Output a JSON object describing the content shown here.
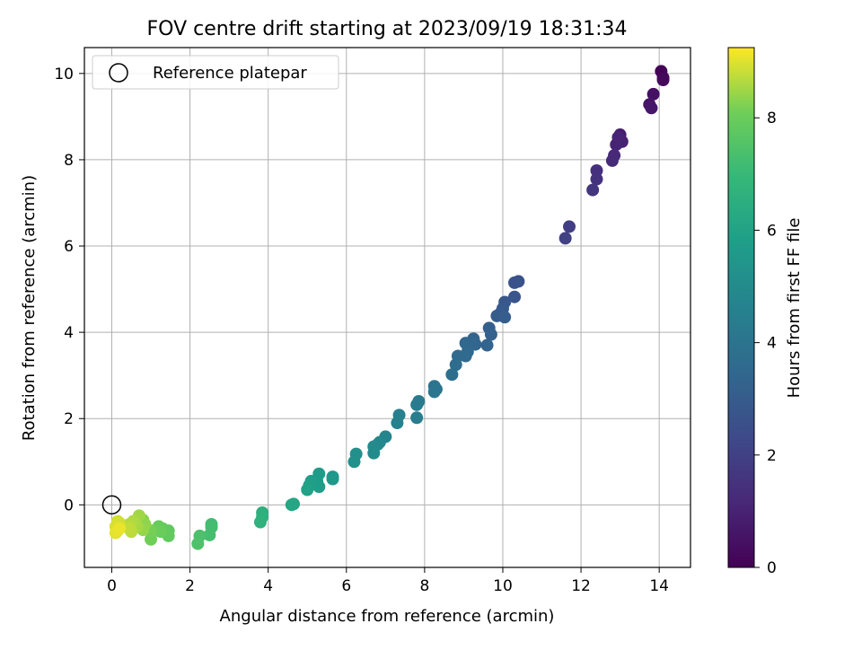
{
  "chart_data": {
    "type": "scatter",
    "title": "FOV centre drift starting at 2023/09/19 18:31:34",
    "xlabel": "Angular distance from reference (arcmin)",
    "ylabel": "Rotation from reference (arcmin)",
    "xlim": [
      -0.7,
      14.8
    ],
    "ylim": [
      -1.45,
      10.6
    ],
    "xticks": [
      0,
      2,
      4,
      6,
      8,
      10,
      12,
      14
    ],
    "yticks": [
      0,
      2,
      4,
      6,
      8,
      10
    ],
    "grid": true,
    "legend": {
      "position": "top-left",
      "entries": [
        "Reference platepar"
      ]
    },
    "reference_point": {
      "x": 0,
      "y": 0,
      "label": "Reference platepar"
    },
    "colorbar": {
      "label": "Hours from first FF file",
      "range": [
        0,
        9.25
      ],
      "ticks": [
        0,
        2,
        4,
        6,
        8
      ],
      "colormap": "viridis"
    },
    "points": [
      {
        "x": 14.05,
        "y": 10.05,
        "h": 0.05
      },
      {
        "x": 14.1,
        "y": 9.9,
        "h": 0.15
      },
      {
        "x": 14.1,
        "y": 9.85,
        "h": 0.25
      },
      {
        "x": 13.85,
        "y": 9.52,
        "h": 0.45
      },
      {
        "x": 13.75,
        "y": 9.28,
        "h": 0.55
      },
      {
        "x": 13.8,
        "y": 9.2,
        "h": 0.65
      },
      {
        "x": 13.0,
        "y": 8.58,
        "h": 0.85
      },
      {
        "x": 13.05,
        "y": 8.42,
        "h": 0.95
      },
      {
        "x": 12.9,
        "y": 8.35,
        "h": 1.0
      },
      {
        "x": 12.95,
        "y": 8.52,
        "h": 1.05
      },
      {
        "x": 12.85,
        "y": 8.1,
        "h": 1.15
      },
      {
        "x": 12.8,
        "y": 7.98,
        "h": 1.25
      },
      {
        "x": 12.4,
        "y": 7.75,
        "h": 1.4
      },
      {
        "x": 12.4,
        "y": 7.55,
        "h": 1.5
      },
      {
        "x": 12.3,
        "y": 7.3,
        "h": 1.6
      },
      {
        "x": 11.7,
        "y": 6.45,
        "h": 1.9
      },
      {
        "x": 11.6,
        "y": 6.18,
        "h": 2.0
      },
      {
        "x": 10.4,
        "y": 5.18,
        "h": 2.6
      },
      {
        "x": 10.3,
        "y": 5.15,
        "h": 2.65
      },
      {
        "x": 10.3,
        "y": 4.82,
        "h": 2.75
      },
      {
        "x": 10.05,
        "y": 4.7,
        "h": 2.85
      },
      {
        "x": 10.0,
        "y": 4.55,
        "h": 2.9
      },
      {
        "x": 9.95,
        "y": 4.45,
        "h": 2.95
      },
      {
        "x": 9.85,
        "y": 4.38,
        "h": 3.0
      },
      {
        "x": 10.05,
        "y": 4.35,
        "h": 3.05
      },
      {
        "x": 9.65,
        "y": 4.1,
        "h": 3.15
      },
      {
        "x": 9.7,
        "y": 3.95,
        "h": 3.2
      },
      {
        "x": 9.6,
        "y": 3.7,
        "h": 3.3
      },
      {
        "x": 9.25,
        "y": 3.85,
        "h": 3.35
      },
      {
        "x": 9.3,
        "y": 3.72,
        "h": 3.4
      },
      {
        "x": 9.05,
        "y": 3.75,
        "h": 3.45
      },
      {
        "x": 9.1,
        "y": 3.55,
        "h": 3.5
      },
      {
        "x": 9.05,
        "y": 3.45,
        "h": 3.55
      },
      {
        "x": 8.85,
        "y": 3.45,
        "h": 3.6
      },
      {
        "x": 8.8,
        "y": 3.25,
        "h": 3.7
      },
      {
        "x": 8.7,
        "y": 3.02,
        "h": 3.8
      },
      {
        "x": 8.25,
        "y": 2.75,
        "h": 4.0
      },
      {
        "x": 8.3,
        "y": 2.68,
        "h": 4.05
      },
      {
        "x": 8.25,
        "y": 2.62,
        "h": 4.1
      },
      {
        "x": 7.85,
        "y": 2.4,
        "h": 4.25
      },
      {
        "x": 7.8,
        "y": 2.32,
        "h": 4.3
      },
      {
        "x": 7.8,
        "y": 2.02,
        "h": 4.4
      },
      {
        "x": 7.35,
        "y": 2.08,
        "h": 4.55
      },
      {
        "x": 7.3,
        "y": 1.9,
        "h": 4.6
      },
      {
        "x": 7.0,
        "y": 1.58,
        "h": 4.75
      },
      {
        "x": 6.85,
        "y": 1.45,
        "h": 4.85
      },
      {
        "x": 6.8,
        "y": 1.4,
        "h": 4.9
      },
      {
        "x": 6.7,
        "y": 1.35,
        "h": 4.95
      },
      {
        "x": 6.7,
        "y": 1.2,
        "h": 5.0
      },
      {
        "x": 6.25,
        "y": 1.18,
        "h": 5.2
      },
      {
        "x": 6.2,
        "y": 1.0,
        "h": 5.25
      },
      {
        "x": 5.65,
        "y": 0.65,
        "h": 5.5
      },
      {
        "x": 5.65,
        "y": 0.6,
        "h": 5.55
      },
      {
        "x": 5.3,
        "y": 0.72,
        "h": 5.65
      },
      {
        "x": 5.25,
        "y": 0.55,
        "h": 5.7
      },
      {
        "x": 5.3,
        "y": 0.42,
        "h": 5.75
      },
      {
        "x": 5.1,
        "y": 0.55,
        "h": 5.8
      },
      {
        "x": 5.05,
        "y": 0.45,
        "h": 5.85
      },
      {
        "x": 5.0,
        "y": 0.35,
        "h": 5.9
      },
      {
        "x": 4.65,
        "y": 0.02,
        "h": 6.1
      },
      {
        "x": 4.6,
        "y": 0.0,
        "h": 6.15
      },
      {
        "x": 3.85,
        "y": -0.18,
        "h": 6.55
      },
      {
        "x": 3.85,
        "y": -0.28,
        "h": 6.6
      },
      {
        "x": 3.8,
        "y": -0.4,
        "h": 6.65
      },
      {
        "x": 2.55,
        "y": -0.45,
        "h": 7.2
      },
      {
        "x": 2.55,
        "y": -0.52,
        "h": 7.25
      },
      {
        "x": 2.5,
        "y": -0.7,
        "h": 7.3
      },
      {
        "x": 2.25,
        "y": -0.72,
        "h": 7.4
      },
      {
        "x": 2.2,
        "y": -0.9,
        "h": 7.45
      },
      {
        "x": 1.45,
        "y": -0.6,
        "h": 7.8
      },
      {
        "x": 1.45,
        "y": -0.72,
        "h": 7.85
      },
      {
        "x": 1.3,
        "y": -0.55,
        "h": 7.9
      },
      {
        "x": 1.2,
        "y": -0.5,
        "h": 7.95
      },
      {
        "x": 1.25,
        "y": -0.62,
        "h": 8.0
      },
      {
        "x": 1.0,
        "y": -0.8,
        "h": 8.1
      },
      {
        "x": 1.0,
        "y": -0.6,
        "h": 8.15
      },
      {
        "x": 0.8,
        "y": -0.35,
        "h": 8.3
      },
      {
        "x": 0.85,
        "y": -0.45,
        "h": 8.35
      },
      {
        "x": 0.8,
        "y": -0.58,
        "h": 8.4
      },
      {
        "x": 0.7,
        "y": -0.25,
        "h": 8.5
      },
      {
        "x": 0.65,
        "y": -0.5,
        "h": 8.55
      },
      {
        "x": 0.55,
        "y": -0.38,
        "h": 8.6
      },
      {
        "x": 0.45,
        "y": -0.45,
        "h": 8.65
      },
      {
        "x": 0.5,
        "y": -0.62,
        "h": 8.7
      },
      {
        "x": 0.45,
        "y": -0.55,
        "h": 8.75
      },
      {
        "x": 0.2,
        "y": -0.42,
        "h": 8.85
      },
      {
        "x": 0.15,
        "y": -0.38,
        "h": 8.9
      },
      {
        "x": 0.1,
        "y": -0.5,
        "h": 8.95
      },
      {
        "x": 0.15,
        "y": -0.6,
        "h": 9.0
      },
      {
        "x": 0.1,
        "y": -0.65,
        "h": 9.05
      },
      {
        "x": 0.2,
        "y": -0.55,
        "h": 9.1
      }
    ]
  }
}
